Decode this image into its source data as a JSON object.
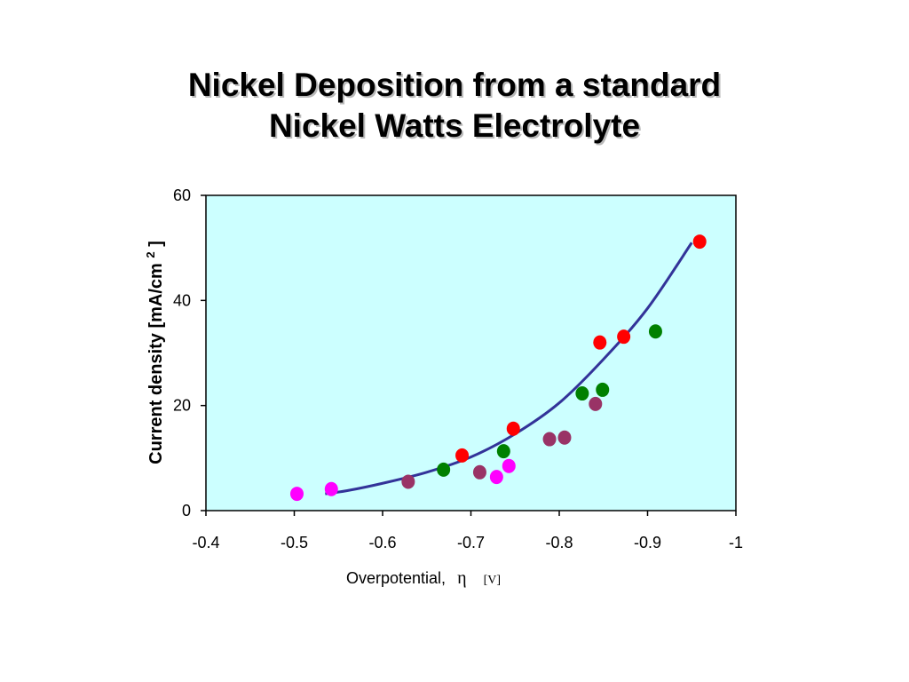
{
  "slide": {
    "title_line1": "Nickel Deposition from a standard",
    "title_line2": "Nickel Watts Electrolyte"
  },
  "chart_data": {
    "type": "scatter",
    "title": "Nickel Deposition from a standard Nickel Watts Electrolyte",
    "xlabel": "Overpotential,",
    "xlabel_symbol": "η",
    "xlabel_unit": "[V]",
    "ylabel": "Current density [mA/cm",
    "ylabel_sup": "2",
    "ylabel_end": "]",
    "xlim": [
      -0.4,
      -1
    ],
    "ylim": [
      0,
      60
    ],
    "x_ticks": [
      -0.4,
      -0.5,
      -0.6,
      -0.7,
      -0.8,
      -0.9,
      -1
    ],
    "x_tick_labels": [
      "-0.4",
      "-0.5",
      "-0.6",
      "-0.7",
      "-0.8",
      "-0.9",
      "-1"
    ],
    "y_ticks": [
      0,
      20,
      40,
      60
    ],
    "y_tick_labels": [
      "0",
      "20",
      "40",
      "60"
    ],
    "grid": false,
    "legend": "none",
    "plot_background": "#ccffff",
    "series": [
      {
        "color": "#ff0000",
        "x": [
          -0.69,
          -0.748,
          -0.846,
          -0.873,
          -0.959
        ],
        "y": [
          10.5,
          15.6,
          32.0,
          33.1,
          51.2
        ]
      },
      {
        "color": "#008000",
        "x": [
          -0.669,
          -0.737,
          -0.826,
          -0.849,
          -0.909
        ],
        "y": [
          7.8,
          11.3,
          22.3,
          23.0,
          34.1
        ]
      },
      {
        "color": "#993366",
        "x": [
          -0.629,
          -0.71,
          -0.789,
          -0.806,
          -0.841
        ],
        "y": [
          5.5,
          7.3,
          13.6,
          13.9,
          20.3
        ]
      },
      {
        "color": "#ff00ff",
        "x": [
          -0.503,
          -0.542,
          -0.729,
          -0.743
        ],
        "y": [
          3.2,
          4.1,
          6.4,
          8.5
        ]
      }
    ],
    "fit_curve": {
      "color": "#333399",
      "x": [
        -0.535,
        -0.56,
        -0.6,
        -0.65,
        -0.7,
        -0.75,
        -0.8,
        -0.85,
        -0.9,
        -0.95
      ],
      "y": [
        3.2,
        3.8,
        5.2,
        7.3,
        10.2,
        14.6,
        20.5,
        28.8,
        38.5,
        51.0
      ]
    }
  }
}
